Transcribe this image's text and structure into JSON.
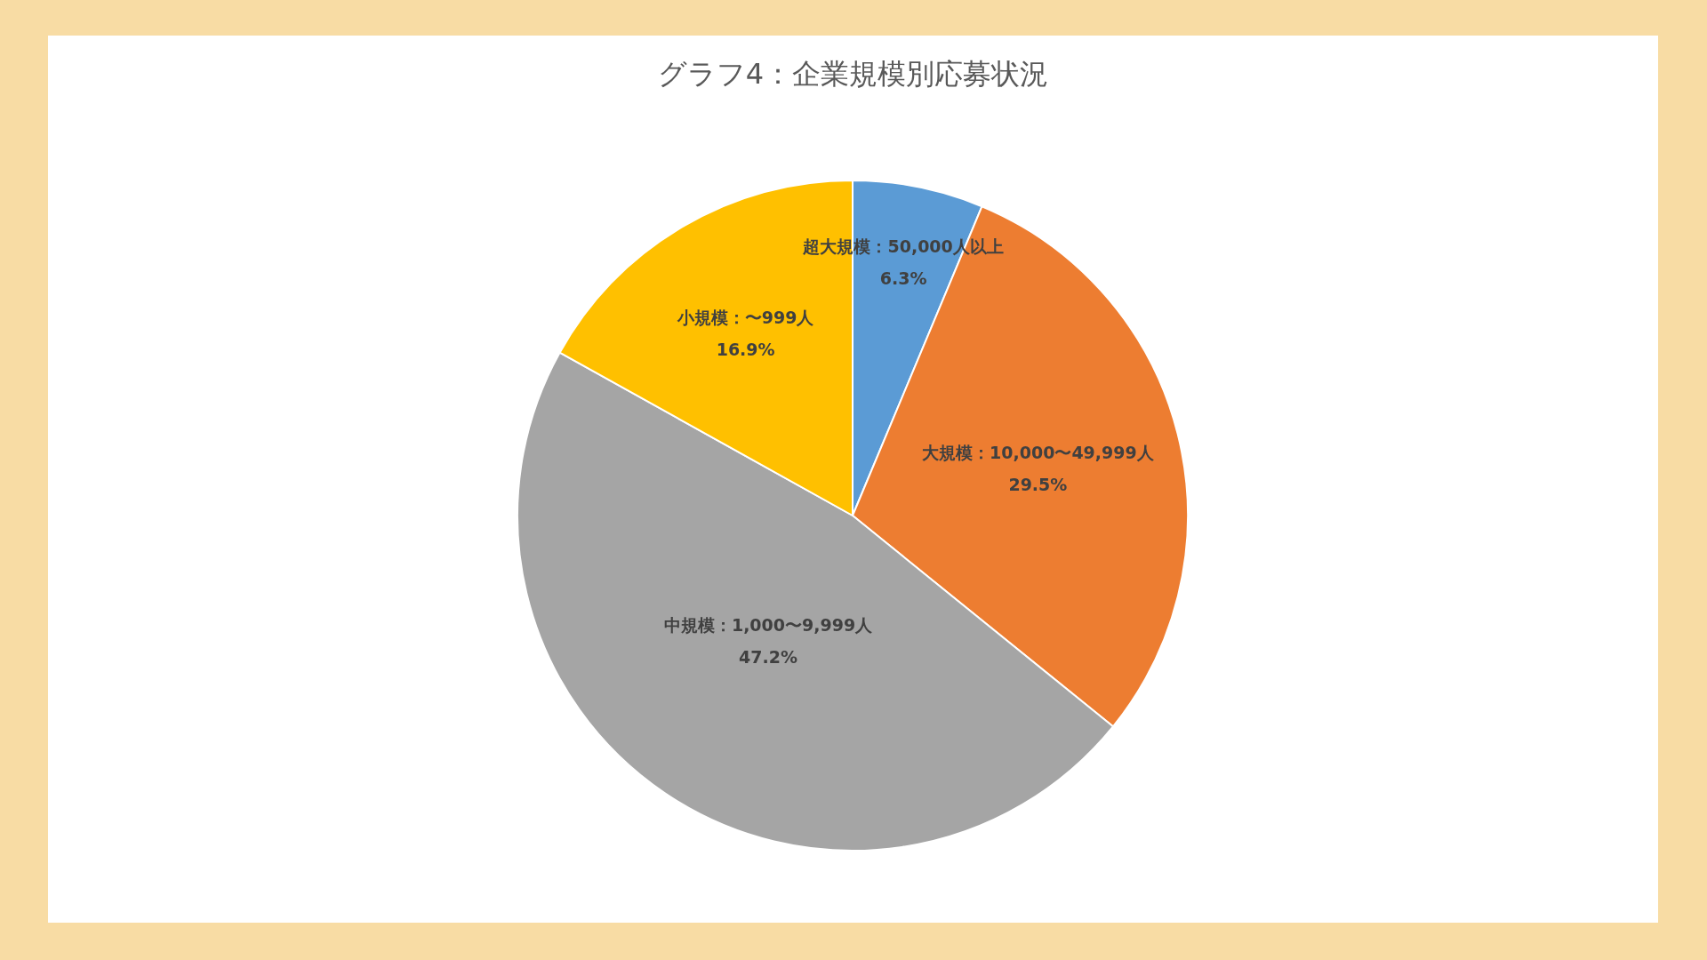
{
  "chart_data": {
    "type": "pie",
    "title": "グラフ4：企業規模別応募状況",
    "categories": [
      "超大規模：50,000人以上",
      "大規模：10,000〜49,999人",
      "中規模：1,000〜9,999人",
      "小規模：〜999人"
    ],
    "values": [
      6.3,
      29.5,
      47.2,
      16.9
    ],
    "value_labels": [
      "6.3%",
      "29.5%",
      "47.2%",
      "16.9%"
    ],
    "colors": [
      "#5b9bd5",
      "#ed7d31",
      "#a5a5a5",
      "#ffc000"
    ],
    "legend": false
  }
}
